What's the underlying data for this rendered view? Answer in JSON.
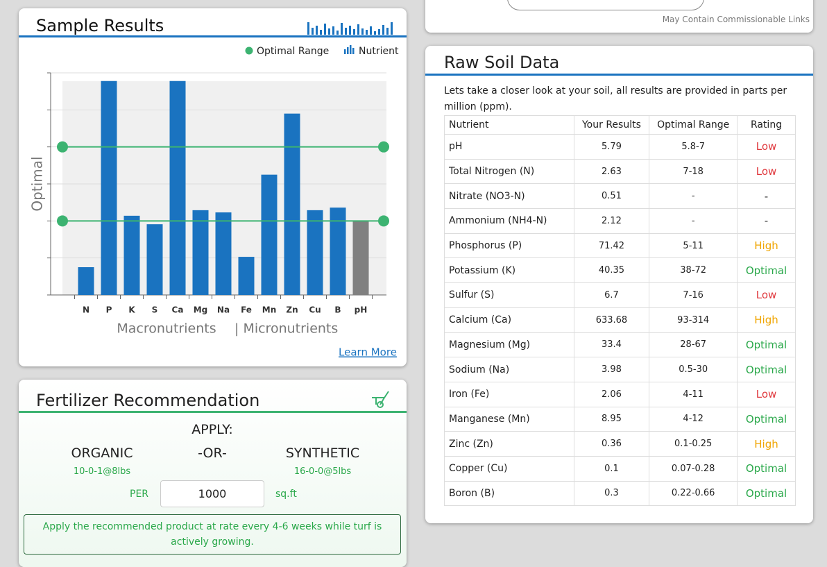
{
  "top_card": {
    "note": "May Contain Commissionable Links"
  },
  "sample_results": {
    "title": "Sample Results",
    "learn_more": "Learn More"
  },
  "chart_data": {
    "type": "bar",
    "y_label": "Optimal",
    "legend": [
      {
        "label": "Optimal Range",
        "color": "#3cb371"
      },
      {
        "label": "Nutrient",
        "color": "#1a73c0"
      }
    ],
    "categories": [
      "N",
      "P",
      "K",
      "S",
      "Ca",
      "Mg",
      "Na",
      "Fe",
      "Mn",
      "Zn",
      "Cu",
      "B",
      "pH"
    ],
    "values": [
      0.75,
      5.78,
      2.14,
      1.91,
      5.78,
      2.29,
      2.23,
      1.03,
      3.25,
      4.9,
      2.29,
      2.36,
      2.0
    ],
    "colors": [
      "#1a73c0",
      "#1a73c0",
      "#1a73c0",
      "#1a73c0",
      "#1a73c0",
      "#1a73c0",
      "#1a73c0",
      "#1a73c0",
      "#1a73c0",
      "#1a73c0",
      "#1a73c0",
      "#1a73c0",
      "#808080"
    ],
    "ylim": [
      0,
      6
    ],
    "yticks": [
      0,
      1,
      2,
      3,
      4,
      5,
      6
    ],
    "grid": true,
    "optimal_range": [
      2,
      4
    ],
    "optimal_color": "#3cb371",
    "x_group_labels": [
      "Macronutrients",
      "| Micronutrients"
    ]
  },
  "fertilizer": {
    "title": "Fertilizer Recommendation",
    "apply": "APPLY:",
    "organic": "ORGANIC",
    "or": "-OR-",
    "synthetic": "SYNTHETIC",
    "organic_product": "10-0-1@8lbs",
    "synthetic_product": "16-0-0@5lbs",
    "per": "PER",
    "area": "1000",
    "unit": "sq.ft",
    "note": "Apply the recommended product at rate every 4-6 weeks while turf is actively growing."
  },
  "raw_soil": {
    "title": "Raw Soil Data",
    "description": "Lets take a closer look at your soil, all results are provided in parts per million (ppm).",
    "table": {
      "header": [
        "Nutrient",
        "Your Results",
        "Optimal Range",
        "Rating"
      ],
      "rows": [
        [
          "pH",
          "5.79",
          "5.8-7",
          "Low"
        ],
        [
          "Total Nitrogen (N)",
          "2.63",
          "7-18",
          "Low"
        ],
        [
          "Nitrate (NO3-N)",
          "0.51",
          "-",
          "-"
        ],
        [
          "Ammonium (NH4-N)",
          "2.12",
          "-",
          "-"
        ],
        [
          "Phosphorus (P)",
          "71.42",
          "5-11",
          "High"
        ],
        [
          "Potassium (K)",
          "40.35",
          "38-72",
          "Optimal"
        ],
        [
          "Sulfur (S)",
          "6.7",
          "7-16",
          "Low"
        ],
        [
          "Calcium (Ca)",
          "633.68",
          "93-314",
          "High"
        ],
        [
          "Magnesium (Mg)",
          "33.4",
          "28-67",
          "Optimal"
        ],
        [
          "Sodium (Na)",
          "3.98",
          "0.5-30",
          "Optimal"
        ],
        [
          "Iron (Fe)",
          "2.06",
          "4-11",
          "Low"
        ],
        [
          "Manganese (Mn)",
          "8.95",
          "4-12",
          "Optimal"
        ],
        [
          "Zinc (Zn)",
          "0.36",
          "0.1-0.25",
          "High"
        ],
        [
          "Copper (Cu)",
          "0.1",
          "0.07-0.28",
          "Optimal"
        ],
        [
          "Boron (B)",
          "0.3",
          "0.22-0.66",
          "Optimal"
        ]
      ],
      "rating_colors": {
        "Low": "#e0393e",
        "High": "#f0a500",
        "Optimal": "#2aa84a",
        "-": "#333333"
      }
    }
  }
}
